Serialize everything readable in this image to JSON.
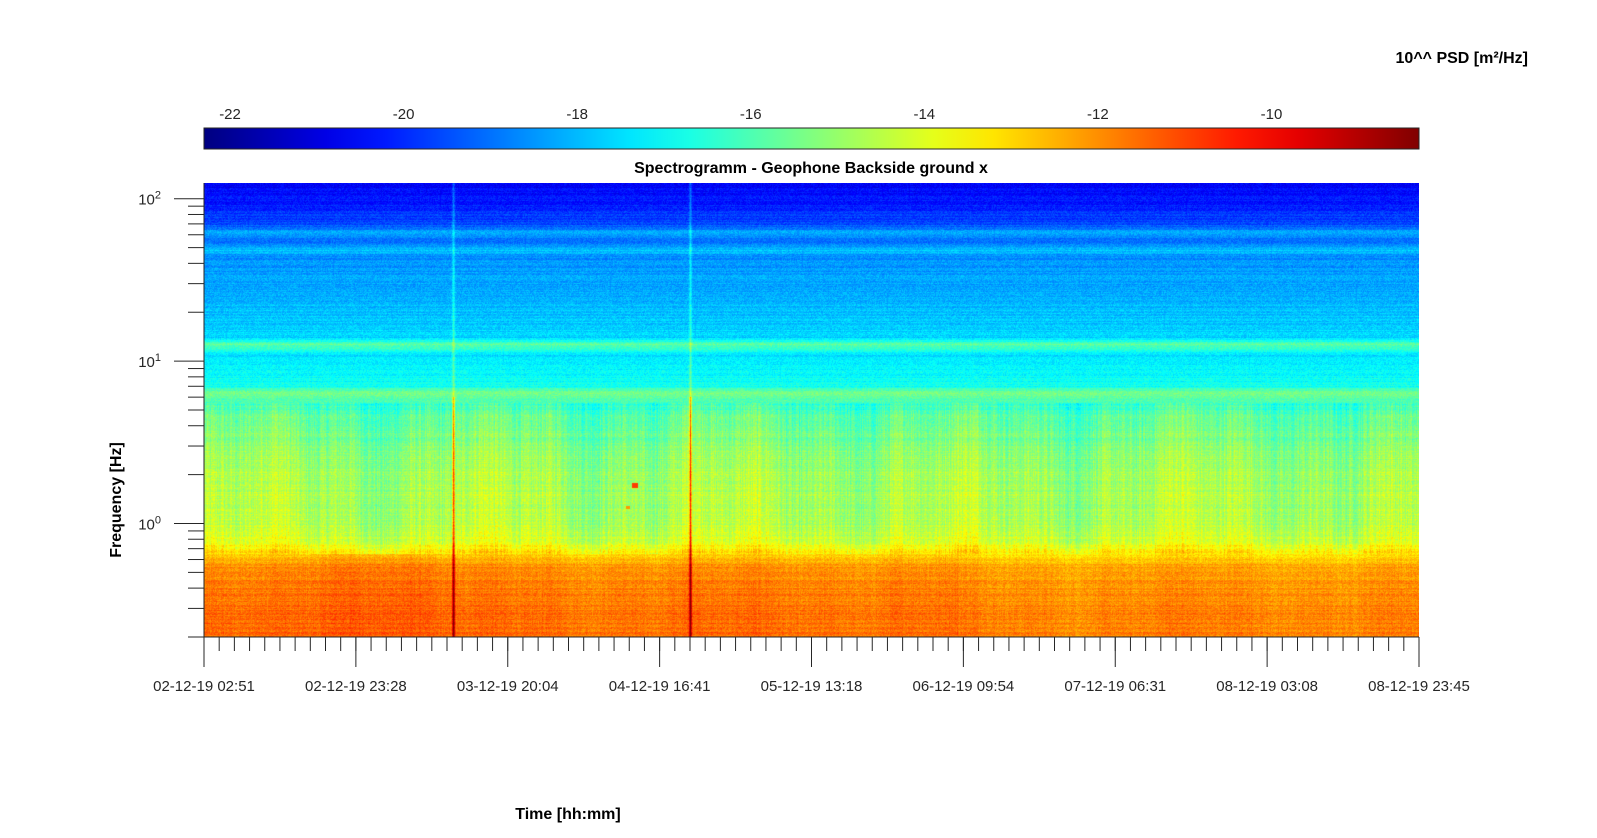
{
  "chart_data": {
    "type": "heatmap",
    "title": "Spectrogramm - Geophone Backside ground x",
    "xlabel": "Time [hh:mm]",
    "ylabel": "Frequency [Hz]",
    "x_tick_labels": [
      "02-12-19 02:51",
      "02-12-19 23:28",
      "03-12-19 20:04",
      "04-12-19 16:41",
      "05-12-19 13:18",
      "06-12-19 09:54",
      "07-12-19 06:31",
      "08-12-19 03:08",
      "08-12-19 23:45"
    ],
    "y_scale": "log",
    "y_ticks": [
      {
        "base": "10",
        "exp": "0",
        "value": 1
      },
      {
        "base": "10",
        "exp": "1",
        "value": 10
      },
      {
        "base": "10",
        "exp": "2",
        "value": 100
      }
    ],
    "ylim": [
      0.2,
      125
    ],
    "colorbar": {
      "label": "10^^ PSD [m²/Hz]",
      "range": [
        -22.3,
        -8.3
      ],
      "ticks": [
        "-22",
        "-20",
        "-18",
        "-16",
        "-14",
        "-12",
        "-10"
      ],
      "tick_values": [
        -22,
        -20,
        -18,
        -16,
        -14,
        -12,
        -10
      ],
      "colormap": "jet",
      "location": "top"
    },
    "psd_profile": {
      "frequency_hz": [
        0.2,
        0.3,
        0.4,
        0.55,
        0.65,
        0.8,
        1.0,
        1.5,
        2.0,
        3.0,
        4.5,
        5.5,
        6.3,
        7.0,
        9.0,
        11.0,
        12.7,
        14.0,
        20.0,
        30.0,
        45.0,
        48.0,
        55.0,
        62.0,
        70.0,
        100.0,
        125.0
      ],
      "log10_psd": [
        -11.5,
        -11.6,
        -11.8,
        -12.1,
        -13.2,
        -14.2,
        -14.6,
        -14.7,
        -14.8,
        -15.2,
        -15.8,
        -16.3,
        -15.2,
        -16.8,
        -17.2,
        -17.4,
        -15.8,
        -17.6,
        -17.9,
        -18.3,
        -18.6,
        -17.8,
        -19.0,
        -18.2,
        -19.5,
        -20.3,
        -20.6
      ]
    },
    "events": [
      {
        "time": "03-12-19 13:40",
        "note": "broadband transient"
      },
      {
        "time": "04-12-19 18:45",
        "note": "broadband transient"
      }
    ],
    "grid": false
  }
}
